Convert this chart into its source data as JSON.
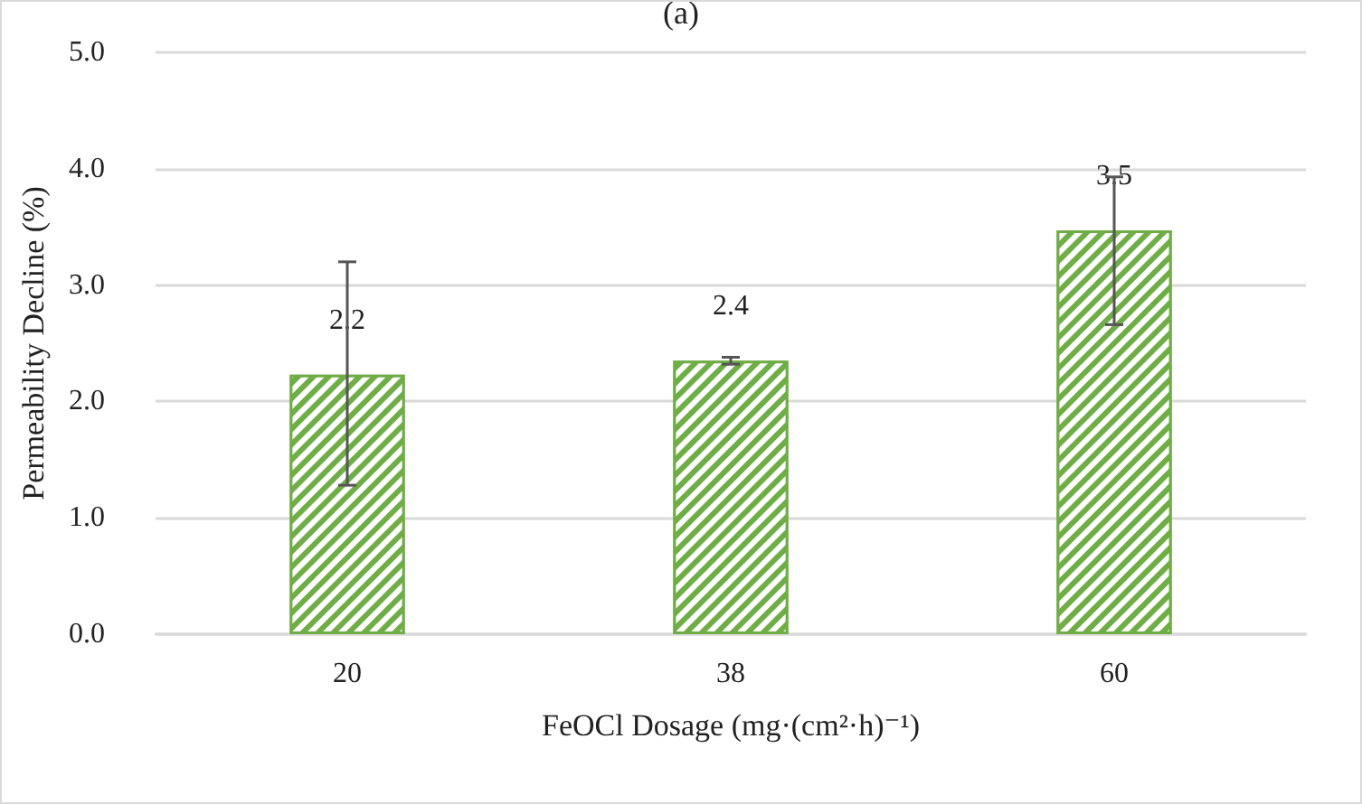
{
  "chart_data": {
    "type": "bar",
    "title": "(a)",
    "xlabel": "FeOCl Dosage (mg·(cm²·h)⁻¹)",
    "ylabel": "Permeability Decline (%)",
    "categories": [
      "20",
      "38",
      "60"
    ],
    "values": [
      2.23,
      2.35,
      3.47
    ],
    "value_labels": [
      "2.2",
      "2.4",
      "3.5"
    ],
    "errors": [
      [
        1.28,
        3.2
      ],
      [
        2.32,
        2.38
      ],
      [
        2.66,
        3.93
      ]
    ],
    "color": "#70ad47",
    "ylim": [
      0,
      5
    ],
    "yticks": [
      {
        "value": 0,
        "label": "0.0"
      },
      {
        "value": 1,
        "label": "1.0"
      },
      {
        "value": 2,
        "label": "2.0"
      },
      {
        "value": 3,
        "label": "3.0"
      },
      {
        "value": 4,
        "label": "4.0"
      },
      {
        "value": 5,
        "label": "5.0"
      }
    ],
    "grid": "y"
  }
}
